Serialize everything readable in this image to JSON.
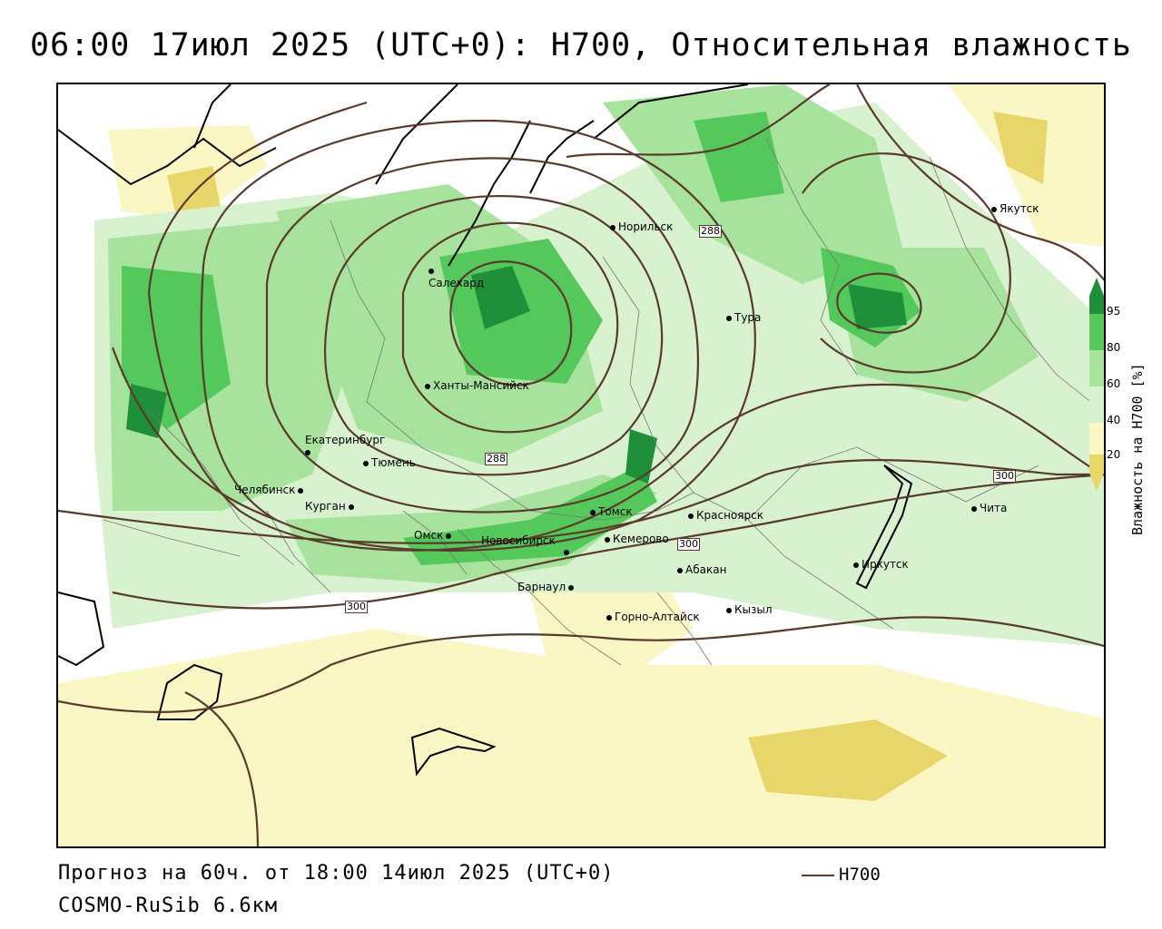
{
  "header": {
    "title": "06:00 17июл 2025 (UTC+0): H700, Относительная влажность"
  },
  "footer": {
    "forecast": "Прогноз на 60ч. от 18:00 14июл 2025 (UTC+0)",
    "model": "COSMO-RuSib 6.6км"
  },
  "legend": {
    "line_label": "H700",
    "line_color": "#5a3a2c"
  },
  "colorbar": {
    "title": "Влажность на H700 [%]",
    "ticks": [
      "95",
      "80",
      "60",
      "40",
      "20"
    ],
    "colors": {
      "very_dry": "#e8d66a",
      "dry": "#fbf7c5",
      "neutral": "#ffffff",
      "moist_light": "#d8f2d0",
      "moist": "#a7e39c",
      "wet": "#54c85a",
      "saturated": "#1f8f3a"
    }
  },
  "contour_labels": [
    {
      "text": "288"
    },
    {
      "text": "288"
    },
    {
      "text": "300"
    },
    {
      "text": "300"
    },
    {
      "text": "300"
    }
  ],
  "cities": [
    {
      "name": "Норильск"
    },
    {
      "name": "Якутск"
    },
    {
      "name": "Салехард"
    },
    {
      "name": "Тура"
    },
    {
      "name": "Ханты-Мансийск"
    },
    {
      "name": "Екатеринбург"
    },
    {
      "name": "Тюмень"
    },
    {
      "name": "Челябинск"
    },
    {
      "name": "Курган"
    },
    {
      "name": "Омск"
    },
    {
      "name": "Новосибирск"
    },
    {
      "name": "Томск"
    },
    {
      "name": "Кемерово"
    },
    {
      "name": "Красноярск"
    },
    {
      "name": "Абакан"
    },
    {
      "name": "Барнаул"
    },
    {
      "name": "Горно-Алтайск"
    },
    {
      "name": "Кызыл"
    },
    {
      "name": "Иркутск"
    },
    {
      "name": "Чита"
    }
  ]
}
